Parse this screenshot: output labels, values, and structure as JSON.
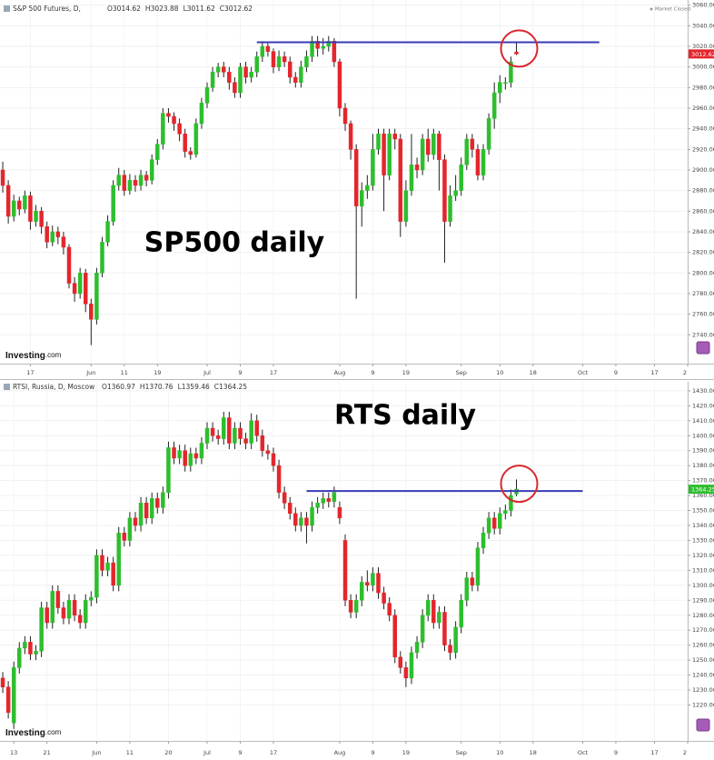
{
  "chart_data": [
    {
      "type": "candlestick",
      "title": "S&P 500 Futures, D,",
      "status": "Market Closed",
      "ohlc_labels": [
        "O",
        "H",
        "L",
        "C"
      ],
      "annotation": "SP500 daily",
      "logo": "Investing",
      "logo_suffix": ".com",
      "up_color": "#2dbe2d",
      "down_color": "#e3262c",
      "wick_color": "#222222",
      "open": [
        2900,
        2885,
        2855,
        2870,
        2862,
        2875,
        2850,
        2860,
        2845,
        2830,
        2840,
        2835,
        2825,
        2790,
        2780,
        2800,
        2770,
        2755,
        2800,
        2830,
        2850,
        2885,
        2895,
        2880,
        2890,
        2885,
        2895,
        2890,
        2910,
        2925,
        2955,
        2952,
        2945,
        2935,
        2918,
        2915,
        2945,
        2965,
        2980,
        2995,
        3000,
        2995,
        2985,
        2975,
        3000,
        2990,
        2995,
        3010,
        3020,
        3015,
        3000,
        3010,
        3005,
        2990,
        2985,
        3000,
        3010,
        3025,
        3018,
        3020,
        3025,
        3005,
        2960,
        2945,
        2920,
        2865,
        2880,
        2885,
        2920,
        2935,
        2895,
        2935,
        2930,
        2850,
        2880,
        2905,
        2900,
        2930,
        2915,
        2935,
        2910,
        2850,
        2875,
        2880,
        2905,
        2930,
        2920,
        2895,
        2920,
        2950,
        2975,
        2985,
        2985,
        3014.62
      ],
      "high": [
        2908,
        2890,
        2876,
        2874,
        2880,
        2879,
        2866,
        2864,
        2850,
        2846,
        2845,
        2840,
        2828,
        2796,
        2805,
        2804,
        2775,
        2805,
        2835,
        2856,
        2890,
        2902,
        2900,
        2896,
        2895,
        2900,
        2899,
        2915,
        2930,
        2960,
        2960,
        2956,
        2950,
        2940,
        2922,
        2950,
        2970,
        2985,
        3000,
        3004,
        3005,
        3000,
        2990,
        3004,
        3005,
        3000,
        3015,
        3025,
        3024,
        3018,
        3016,
        3015,
        3010,
        2995,
        3006,
        3016,
        3030,
        3030,
        3028,
        3030,
        3028,
        3008,
        2965,
        2948,
        2925,
        2888,
        2895,
        2935,
        2940,
        2940,
        2940,
        2940,
        2935,
        2890,
        2935,
        2912,
        2935,
        2940,
        2940,
        2938,
        2915,
        2885,
        2895,
        2912,
        2935,
        2935,
        2925,
        2925,
        2955,
        2985,
        2992,
        2990,
        3010,
        3023.88
      ],
      "low": [
        2878,
        2848,
        2850,
        2856,
        2858,
        2842,
        2845,
        2838,
        2824,
        2826,
        2828,
        2818,
        2785,
        2772,
        2775,
        2762,
        2730,
        2750,
        2796,
        2826,
        2846,
        2880,
        2875,
        2876,
        2879,
        2880,
        2884,
        2886,
        2905,
        2920,
        2946,
        2938,
        2928,
        2912,
        2910,
        2912,
        2940,
        2960,
        2976,
        2990,
        2990,
        2978,
        2970,
        2970,
        2984,
        2985,
        2990,
        3005,
        3010,
        2994,
        2996,
        3000,
        2984,
        2980,
        2980,
        2995,
        3005,
        3010,
        3012,
        3015,
        3000,
        2952,
        2938,
        2910,
        2775,
        2845,
        2872,
        2880,
        2915,
        2860,
        2890,
        2920,
        2835,
        2845,
        2875,
        2892,
        2895,
        2908,
        2910,
        2880,
        2810,
        2845,
        2870,
        2875,
        2900,
        2912,
        2890,
        2890,
        2915,
        2940,
        2965,
        2978,
        2980,
        3011.62
      ],
      "close": [
        2885,
        2855,
        2870,
        2862,
        2875,
        2850,
        2860,
        2845,
        2830,
        2840,
        2835,
        2825,
        2790,
        2780,
        2800,
        2770,
        2755,
        2800,
        2830,
        2850,
        2885,
        2895,
        2880,
        2890,
        2885,
        2895,
        2890,
        2910,
        2925,
        2955,
        2952,
        2945,
        2935,
        2918,
        2915,
        2945,
        2965,
        2980,
        2995,
        3000,
        2995,
        2985,
        2975,
        3000,
        2990,
        2995,
        3010,
        3020,
        3015,
        3000,
        3010,
        3005,
        2990,
        2985,
        3000,
        3010,
        3025,
        3018,
        3020,
        3025,
        3005,
        2960,
        2945,
        2920,
        2865,
        2880,
        2885,
        2920,
        2935,
        2895,
        2935,
        2930,
        2850,
        2880,
        2905,
        2900,
        2930,
        2915,
        2935,
        2910,
        2850,
        2875,
        2880,
        2905,
        2930,
        2920,
        2895,
        2920,
        2950,
        2975,
        2985,
        2985,
        3005,
        3012.62
      ],
      "resistance": {
        "value": 3024,
        "from": 46,
        "to": 108,
        "color": "#3a3ab8"
      },
      "xlim": [
        -0.5,
        124
      ],
      "xticks": [
        {
          "value": 5,
          "label": "17"
        },
        {
          "value": 16,
          "label": "Jun"
        },
        {
          "value": 22,
          "label": "11"
        },
        {
          "value": 28,
          "label": "19"
        },
        {
          "value": 37,
          "label": "Jul"
        },
        {
          "value": 43,
          "label": "9"
        },
        {
          "value": 49,
          "label": "17"
        },
        {
          "value": 61,
          "label": "Aug"
        },
        {
          "value": 67,
          "label": "9"
        },
        {
          "value": 73,
          "label": "19"
        },
        {
          "value": 83,
          "label": "Sep"
        },
        {
          "value": 90,
          "label": "10"
        },
        {
          "value": 96,
          "label": "18"
        },
        {
          "value": 105,
          "label": "Oct"
        },
        {
          "value": 111,
          "label": "9"
        },
        {
          "value": 118,
          "label": "17"
        },
        {
          "value": 124,
          "label": "2"
        }
      ],
      "ylim": [
        2712,
        3065
      ],
      "yticks": [
        {
          "value": 3060,
          "label": "3060.00"
        },
        {
          "value": 3040,
          "label": "3040.00"
        },
        {
          "value": 3020,
          "label": "3020.00"
        },
        {
          "value": 3000,
          "label": "3000.00"
        },
        {
          "value": 2980,
          "label": "2980.00"
        },
        {
          "value": 2960,
          "label": "2960.00"
        },
        {
          "value": 2940,
          "label": "2940.00"
        },
        {
          "value": 2920,
          "label": "2920.00"
        },
        {
          "value": 2900,
          "label": "2900.00"
        },
        {
          "value": 2880,
          "label": "2880.00"
        },
        {
          "value": 2860,
          "label": "2860.00"
        },
        {
          "value": 2840,
          "label": "2840.00"
        },
        {
          "value": 2820,
          "label": "2820.00"
        },
        {
          "value": 2800,
          "label": "2800.00"
        },
        {
          "value": 2780,
          "label": "2780.00"
        },
        {
          "value": 2760,
          "label": "2760.00"
        },
        {
          "value": 2740,
          "label": "2740.00"
        }
      ],
      "grid": true
    },
    {
      "type": "candlestick",
      "title": "RTSI, Russia, D, Moscow",
      "ohlc_labels": [
        "O",
        "H",
        "L",
        "C"
      ],
      "annotation": "RTS daily",
      "logo": "Investing",
      "logo_suffix": ".com",
      "up_color": "#2dbe2d",
      "down_color": "#e3262c",
      "wick_color": "#222222",
      "open": [
        1238,
        1232,
        1208,
        1245,
        1258,
        1262,
        1254,
        1256,
        1285,
        1275,
        1296,
        1285,
        1278,
        1290,
        1280,
        1275,
        1290,
        1292,
        1320,
        1310,
        1315,
        1300,
        1335,
        1330,
        1345,
        1340,
        1355,
        1345,
        1358,
        1352,
        1362,
        1392,
        1385,
        1390,
        1380,
        1388,
        1385,
        1395,
        1405,
        1400,
        1398,
        1412,
        1395,
        1405,
        1398,
        1395,
        1410,
        1400,
        1390,
        1388,
        1380,
        1362,
        1355,
        1348,
        1340,
        1345,
        1340,
        1352,
        1355,
        1358,
        1356,
        1352,
        1330,
        1290,
        1282,
        1290,
        1302,
        1300,
        1308,
        1295,
        1288,
        1280,
        1252,
        1245,
        1238,
        1255,
        1262,
        1280,
        1290,
        1275,
        1282,
        1260,
        1255,
        1272,
        1290,
        1305,
        1300,
        1325,
        1335,
        1345,
        1338,
        1348,
        1350,
        1360.97
      ],
      "high": [
        1242,
        1236,
        1249,
        1262,
        1266,
        1266,
        1260,
        1289,
        1289,
        1300,
        1300,
        1289,
        1294,
        1294,
        1284,
        1294,
        1296,
        1324,
        1324,
        1319,
        1319,
        1339,
        1339,
        1349,
        1349,
        1359,
        1359,
        1362,
        1362,
        1366,
        1396,
        1396,
        1394,
        1394,
        1392,
        1392,
        1399,
        1409,
        1409,
        1404,
        1416,
        1416,
        1409,
        1409,
        1402,
        1415,
        1414,
        1404,
        1394,
        1392,
        1384,
        1366,
        1359,
        1352,
        1349,
        1349,
        1356,
        1359,
        1362,
        1362,
        1366,
        1356,
        1334,
        1294,
        1294,
        1306,
        1310,
        1312,
        1312,
        1299,
        1292,
        1284,
        1256,
        1249,
        1259,
        1266,
        1284,
        1294,
        1294,
        1286,
        1286,
        1264,
        1276,
        1294,
        1309,
        1309,
        1329,
        1339,
        1349,
        1349,
        1352,
        1354,
        1364,
        1370.76
      ],
      "low": [
        1228,
        1211,
        1204,
        1241,
        1254,
        1250,
        1250,
        1252,
        1271,
        1271,
        1281,
        1274,
        1274,
        1276,
        1271,
        1271,
        1286,
        1288,
        1306,
        1306,
        1296,
        1296,
        1326,
        1326,
        1336,
        1336,
        1341,
        1341,
        1348,
        1348,
        1358,
        1381,
        1381,
        1376,
        1376,
        1381,
        1381,
        1391,
        1396,
        1394,
        1394,
        1391,
        1391,
        1394,
        1391,
        1391,
        1396,
        1386,
        1384,
        1376,
        1358,
        1351,
        1344,
        1336,
        1336,
        1328,
        1336,
        1348,
        1351,
        1352,
        1352,
        1341,
        1286,
        1278,
        1278,
        1286,
        1296,
        1296,
        1291,
        1284,
        1276,
        1248,
        1241,
        1232,
        1234,
        1251,
        1258,
        1276,
        1271,
        1271,
        1256,
        1250,
        1251,
        1268,
        1286,
        1296,
        1296,
        1321,
        1331,
        1334,
        1334,
        1344,
        1346,
        1359.46
      ],
      "close": [
        1232,
        1215,
        1245,
        1258,
        1262,
        1254,
        1256,
        1285,
        1275,
        1296,
        1285,
        1278,
        1290,
        1280,
        1275,
        1290,
        1292,
        1320,
        1310,
        1315,
        1300,
        1335,
        1330,
        1345,
        1340,
        1355,
        1345,
        1358,
        1352,
        1362,
        1392,
        1385,
        1390,
        1380,
        1388,
        1385,
        1395,
        1405,
        1400,
        1398,
        1412,
        1395,
        1405,
        1398,
        1395,
        1410,
        1400,
        1390,
        1388,
        1380,
        1362,
        1355,
        1348,
        1340,
        1345,
        1340,
        1352,
        1355,
        1358,
        1356,
        1362,
        1345,
        1290,
        1282,
        1290,
        1302,
        1300,
        1308,
        1295,
        1288,
        1280,
        1252,
        1245,
        1238,
        1255,
        1262,
        1280,
        1290,
        1275,
        1282,
        1260,
        1255,
        1272,
        1290,
        1305,
        1300,
        1325,
        1335,
        1345,
        1338,
        1348,
        1350,
        1360,
        1364.25
      ],
      "resistance": {
        "value": 1363,
        "from": 55,
        "to": 105,
        "color": "#3a3ab8"
      },
      "xlim": [
        -0.5,
        124
      ],
      "xticks": [
        {
          "value": 2,
          "label": "13"
        },
        {
          "value": 8,
          "label": "21"
        },
        {
          "value": 17,
          "label": "Jun"
        },
        {
          "value": 23,
          "label": "11"
        },
        {
          "value": 30,
          "label": "20"
        },
        {
          "value": 37,
          "label": "Jul"
        },
        {
          "value": 43,
          "label": "9"
        },
        {
          "value": 49,
          "label": "17"
        },
        {
          "value": 61,
          "label": "Aug"
        },
        {
          "value": 67,
          "label": "9"
        },
        {
          "value": 73,
          "label": "19"
        },
        {
          "value": 83,
          "label": "Sep"
        },
        {
          "value": 90,
          "label": "10"
        },
        {
          "value": 96,
          "label": "18"
        },
        {
          "value": 105,
          "label": "Oct"
        },
        {
          "value": 111,
          "label": "9"
        },
        {
          "value": 118,
          "label": "17"
        },
        {
          "value": 124,
          "label": "2"
        }
      ],
      "ylim": [
        1196,
        1436
      ],
      "yticks": [
        {
          "value": 1430,
          "label": "1430.00"
        },
        {
          "value": 1420,
          "label": "1420.00"
        },
        {
          "value": 1410,
          "label": "1410.00"
        },
        {
          "value": 1400,
          "label": "1400.00"
        },
        {
          "value": 1390,
          "label": "1390.00"
        },
        {
          "value": 1380,
          "label": "1380.00"
        },
        {
          "value": 1370,
          "label": "1370.00"
        },
        {
          "value": 1360,
          "label": "1360.00"
        },
        {
          "value": 1350,
          "label": "1350.00"
        },
        {
          "value": 1340,
          "label": "1340.00"
        },
        {
          "value": 1330,
          "label": "1330.00"
        },
        {
          "value": 1320,
          "label": "1320.00"
        },
        {
          "value": 1310,
          "label": "1310.00"
        },
        {
          "value": 1300,
          "label": "1300.00"
        },
        {
          "value": 1290,
          "label": "1290.00"
        },
        {
          "value": 1280,
          "label": "1280.00"
        },
        {
          "value": 1270,
          "label": "1270.00"
        },
        {
          "value": 1260,
          "label": "1260.00"
        },
        {
          "value": 1250,
          "label": "1250.00"
        },
        {
          "value": 1240,
          "label": "1240.00"
        },
        {
          "value": 1230,
          "label": "1230.00"
        },
        {
          "value": 1220,
          "label": "1220.00"
        }
      ],
      "grid": true
    }
  ]
}
